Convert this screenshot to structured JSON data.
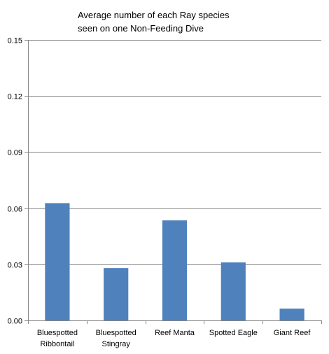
{
  "chart_data": {
    "type": "bar",
    "title_lines": [
      "Average number of  each Ray species",
      "seen on one Non-Feeding Dive"
    ],
    "categories": [
      [
        "Bluespotted",
        "Ribbontail"
      ],
      [
        "Bluespotted",
        "Stingray"
      ],
      [
        "Reef Manta"
      ],
      [
        "Spotted Eagle"
      ],
      [
        "Giant Reef"
      ]
    ],
    "values": [
      0.0627,
      0.028,
      0.0535,
      0.031,
      0.0063
    ],
    "ylim": [
      0,
      0.15
    ],
    "yticks": [
      "0.00",
      "0.03",
      "0.06",
      "0.09",
      "0.12",
      "0.15"
    ],
    "ytick_values": [
      0,
      0.03,
      0.06,
      0.09,
      0.12,
      0.15
    ],
    "grid": true,
    "bar_color": "#4f81bd",
    "grid_color": "#868686"
  }
}
